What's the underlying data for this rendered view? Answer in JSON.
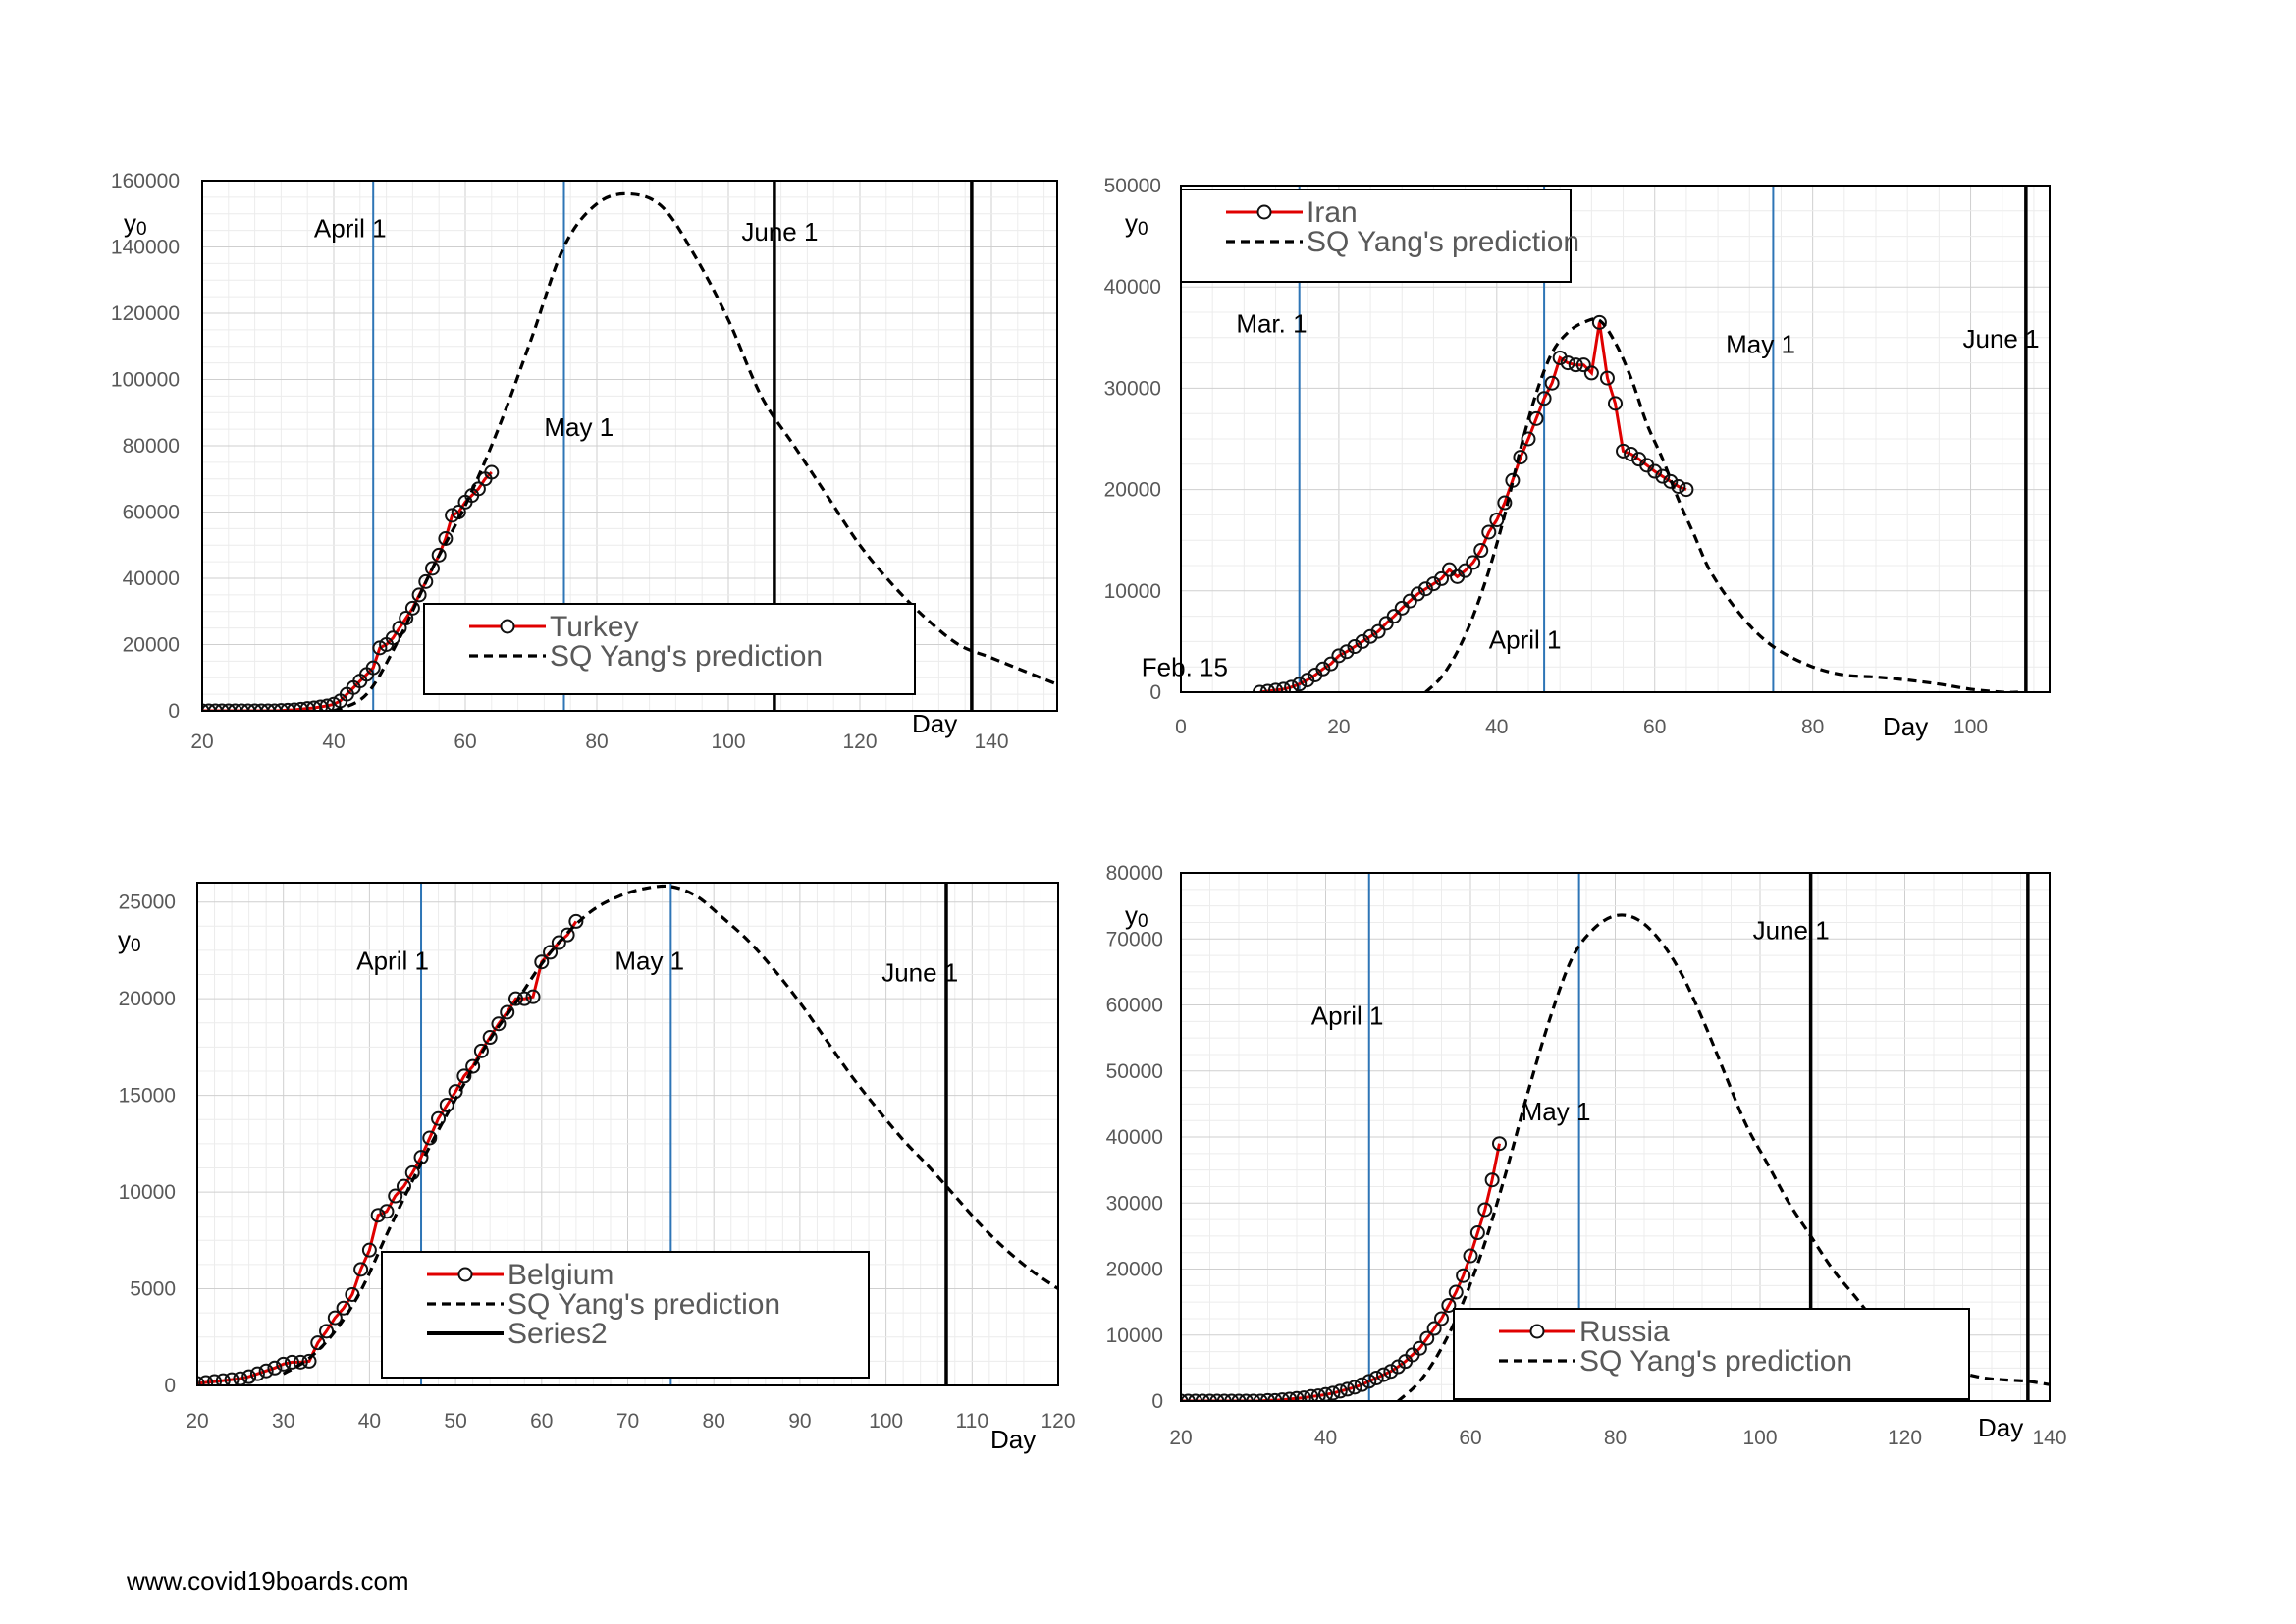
{
  "footer": {
    "text": "www.covid19boards.com"
  },
  "chart_data": [
    {
      "type": "line",
      "country": "Turkey",
      "xlim": [
        20,
        150
      ],
      "ylim": [
        0,
        160000
      ],
      "xticks": [
        20,
        40,
        60,
        80,
        100,
        120,
        140
      ],
      "yticks": [
        0,
        20000,
        40000,
        60000,
        80000,
        100000,
        120000,
        140000,
        160000
      ],
      "xlabel": "Day",
      "ylabel": "y0",
      "legend": [
        "Turkey",
        "SQ Yang's prediction"
      ],
      "blue_lines": [
        46,
        75
      ],
      "black_lines": [
        107,
        137
      ],
      "annotations": [
        {
          "text": "April 1",
          "x": 37,
          "y": 143000
        },
        {
          "text": "June 1",
          "x": 102,
          "y": 142000
        },
        {
          "text": "May 1",
          "x": 72,
          "y": 83000
        }
      ],
      "series": [
        {
          "name": "Turkey",
          "style": "observed",
          "x": [
            20,
            21,
            22,
            23,
            24,
            25,
            26,
            27,
            28,
            29,
            30,
            31,
            32,
            33,
            34,
            35,
            36,
            37,
            38,
            39,
            40,
            41,
            42,
            43,
            44,
            45,
            46,
            47,
            48,
            49,
            50,
            51,
            52,
            53,
            54,
            55,
            56,
            57,
            58,
            59,
            60,
            61,
            62,
            63,
            64
          ],
          "y": [
            0,
            0,
            0,
            0,
            0,
            0,
            0,
            0,
            0,
            0,
            0,
            0,
            100,
            200,
            300,
            500,
            700,
            900,
            1200,
            1500,
            2000,
            3000,
            5000,
            7000,
            9000,
            11000,
            13000,
            19000,
            20000,
            22000,
            25000,
            28000,
            31000,
            35000,
            39000,
            43000,
            47000,
            52000,
            59000,
            60000,
            63000,
            65000,
            67000,
            70000,
            72000
          ]
        },
        {
          "name": "SQ Yang's prediction",
          "style": "prediction",
          "x": [
            40,
            45,
            50,
            55,
            60,
            65,
            70,
            75,
            80,
            85,
            90,
            95,
            100,
            105,
            110,
            115,
            120,
            125,
            130,
            135,
            140,
            145,
            150
          ],
          "y": [
            0,
            5000,
            22000,
            43000,
            62000,
            85000,
            112000,
            140000,
            153000,
            156000,
            152000,
            137000,
            118000,
            95000,
            80000,
            65000,
            50000,
            38000,
            28000,
            20000,
            16000,
            12000,
            8000
          ]
        }
      ]
    },
    {
      "type": "line",
      "country": "Iran",
      "xlim": [
        0,
        110
      ],
      "ylim": [
        0,
        50000
      ],
      "xticks": [
        0,
        20,
        40,
        60,
        80,
        100
      ],
      "yticks": [
        0,
        10000,
        20000,
        30000,
        40000,
        50000
      ],
      "xlabel": "Day",
      "ylabel": "y0",
      "legend": [
        "Iran",
        "SQ Yang's prediction"
      ],
      "blue_lines": [
        15,
        46,
        75
      ],
      "black_lines": [
        107
      ],
      "annotations": [
        {
          "text": "Mar. 1",
          "x": 7,
          "y": 35500
        },
        {
          "text": "May 1",
          "x": 69,
          "y": 33500
        },
        {
          "text": "June 1",
          "x": 99,
          "y": 34000
        },
        {
          "text": "April 1",
          "x": 39,
          "y": 4300
        },
        {
          "text": "Feb. 15",
          "x": -5,
          "y": 1600
        }
      ],
      "series": [
        {
          "name": "Iran",
          "style": "observed",
          "x": [
            10,
            11,
            12,
            13,
            14,
            15,
            16,
            17,
            18,
            19,
            20,
            21,
            22,
            23,
            24,
            25,
            26,
            27,
            28,
            29,
            30,
            31,
            32,
            33,
            34,
            35,
            36,
            37,
            38,
            39,
            40,
            41,
            42,
            43,
            44,
            45,
            46,
            47,
            48,
            49,
            50,
            51,
            52,
            53,
            54,
            55,
            56,
            57,
            58,
            59,
            60,
            61,
            62,
            63,
            64
          ],
          "y": [
            0,
            100,
            200,
            300,
            500,
            800,
            1200,
            1700,
            2300,
            2800,
            3600,
            4000,
            4500,
            5000,
            5500,
            6000,
            6800,
            7500,
            8300,
            9000,
            9700,
            10200,
            10700,
            11200,
            12100,
            11400,
            12000,
            12800,
            14000,
            15800,
            17000,
            18700,
            20900,
            23200,
            25000,
            27000,
            29000,
            30500,
            33000,
            32500,
            32300,
            32300,
            31500,
            36500,
            31000,
            28500,
            23800,
            23500,
            23000,
            22400,
            21800,
            21300,
            20800,
            20300,
            20000
          ]
        },
        {
          "name": "SQ Yang's prediction",
          "style": "prediction",
          "x": [
            31,
            33,
            35,
            37,
            39,
            41,
            43,
            45,
            47,
            49,
            51,
            53,
            55,
            57,
            59,
            61,
            63,
            65,
            67,
            70,
            73,
            76,
            80,
            84,
            88,
            92,
            96,
            100,
            104,
            106
          ],
          "y": [
            0,
            1500,
            4000,
            7500,
            12000,
            17500,
            24000,
            29500,
            33500,
            35500,
            36500,
            36700,
            34500,
            31000,
            26500,
            23000,
            19000,
            15500,
            12000,
            8500,
            5800,
            4000,
            2500,
            1700,
            1500,
            1200,
            800,
            300,
            0,
            0
          ]
        }
      ]
    },
    {
      "type": "line",
      "country": "Belgium",
      "xlim": [
        20,
        120
      ],
      "ylim": [
        0,
        26000
      ],
      "xticks": [
        20,
        30,
        40,
        50,
        60,
        70,
        80,
        90,
        100,
        110,
        120
      ],
      "yticks": [
        0,
        5000,
        10000,
        15000,
        20000,
        25000
      ],
      "xlabel": "Day",
      "ylabel": "y0",
      "legend": [
        "Belgium",
        "SQ Yang's prediction",
        "Series2"
      ],
      "blue_lines": [
        46,
        75
      ],
      "black_lines": [
        107
      ],
      "annotations": [
        {
          "text": "April 1",
          "x": 38.5,
          "y": 21500
        },
        {
          "text": "May 1",
          "x": 68.5,
          "y": 21500
        },
        {
          "text": "June 1",
          "x": 99.5,
          "y": 20900
        }
      ],
      "series": [
        {
          "name": "Belgium",
          "style": "observed",
          "x": [
            20,
            21,
            22,
            23,
            24,
            25,
            26,
            27,
            28,
            29,
            30,
            31,
            32,
            33,
            34,
            35,
            36,
            37,
            38,
            39,
            40,
            41,
            42,
            43,
            44,
            45,
            46,
            47,
            48,
            49,
            50,
            51,
            52,
            53,
            54,
            55,
            56,
            57,
            58,
            59,
            60,
            61,
            62,
            63,
            64
          ],
          "y": [
            100,
            150,
            200,
            250,
            300,
            350,
            450,
            600,
            750,
            900,
            1100,
            1200,
            1200,
            1250,
            2200,
            2800,
            3500,
            4000,
            4700,
            6000,
            7000,
            8800,
            9000,
            9800,
            10300,
            11000,
            11800,
            12800,
            13800,
            14500,
            15200,
            16000,
            16500,
            17300,
            18000,
            18700,
            19300,
            20000,
            20000,
            20100,
            21900,
            22400,
            22900,
            23300,
            24000
          ]
        },
        {
          "name": "SQ Yang's prediction",
          "style": "prediction",
          "x": [
            30,
            33,
            36,
            39,
            42,
            45,
            48,
            51,
            54,
            57,
            60,
            63,
            66,
            69,
            72,
            75,
            78,
            81,
            84,
            87,
            90,
            93,
            96,
            99,
            102,
            105,
            108,
            111,
            114,
            117,
            120
          ],
          "y": [
            600,
            1400,
            2800,
            4900,
            7800,
            10600,
            13200,
            15600,
            17900,
            19800,
            21800,
            23400,
            24600,
            25300,
            25700,
            25800,
            25300,
            24200,
            23000,
            21500,
            19800,
            17900,
            16000,
            14300,
            12700,
            11300,
            9800,
            8300,
            7000,
            5900,
            5000
          ]
        },
        {
          "name": "Series2",
          "style": "legend-only",
          "x": [],
          "y": []
        }
      ]
    },
    {
      "type": "line",
      "country": "Russia",
      "xlim": [
        20,
        140
      ],
      "ylim": [
        0,
        80000
      ],
      "xticks": [
        20,
        40,
        60,
        80,
        100,
        120,
        140
      ],
      "yticks": [
        0,
        10000,
        20000,
        30000,
        40000,
        50000,
        60000,
        70000,
        80000
      ],
      "xlabel": "Day",
      "ylabel": "y0",
      "legend": [
        "Russia",
        "SQ Yang's prediction"
      ],
      "blue_lines": [
        46,
        75
      ],
      "black_lines": [
        107,
        137
      ],
      "annotations": [
        {
          "text": "April 1",
          "x": 38,
          "y": 57000
        },
        {
          "text": "May 1",
          "x": 67,
          "y": 42500
        },
        {
          "text": "June 1",
          "x": 99,
          "y": 70000
        }
      ],
      "series": [
        {
          "name": "Russia",
          "style": "observed",
          "x": [
            20,
            21,
            22,
            23,
            24,
            25,
            26,
            27,
            28,
            29,
            30,
            31,
            32,
            33,
            34,
            35,
            36,
            37,
            38,
            39,
            40,
            41,
            42,
            43,
            44,
            45,
            46,
            47,
            48,
            49,
            50,
            51,
            52,
            53,
            54,
            55,
            56,
            57,
            58,
            59,
            60,
            61,
            62,
            63,
            64
          ],
          "y": [
            0,
            0,
            0,
            0,
            0,
            0,
            0,
            0,
            0,
            0,
            0,
            0,
            100,
            100,
            200,
            300,
            400,
            500,
            700,
            800,
            1000,
            1200,
            1500,
            1800,
            2100,
            2500,
            3000,
            3500,
            4000,
            4500,
            5200,
            6000,
            7000,
            8000,
            9500,
            11000,
            12500,
            14500,
            16500,
            19000,
            22000,
            25500,
            29000,
            33500,
            39000
          ]
        },
        {
          "name": "SQ Yang's prediction",
          "style": "prediction",
          "x": [
            50,
            53,
            56,
            59,
            62,
            65,
            68,
            71,
            74,
            77,
            80,
            83,
            86,
            89,
            92,
            95,
            98,
            101,
            104,
            107,
            110,
            113,
            116,
            119,
            122,
            125,
            128,
            131,
            134,
            137,
            140
          ],
          "y": [
            0,
            3000,
            8000,
            15000,
            24000,
            35000,
            47000,
            58000,
            67000,
            71500,
            73500,
            73000,
            70000,
            65000,
            58000,
            50000,
            42000,
            36000,
            30000,
            25000,
            20000,
            16000,
            12000,
            9000,
            6500,
            5000,
            4200,
            3500,
            3200,
            3000,
            2500
          ]
        }
      ]
    }
  ]
}
